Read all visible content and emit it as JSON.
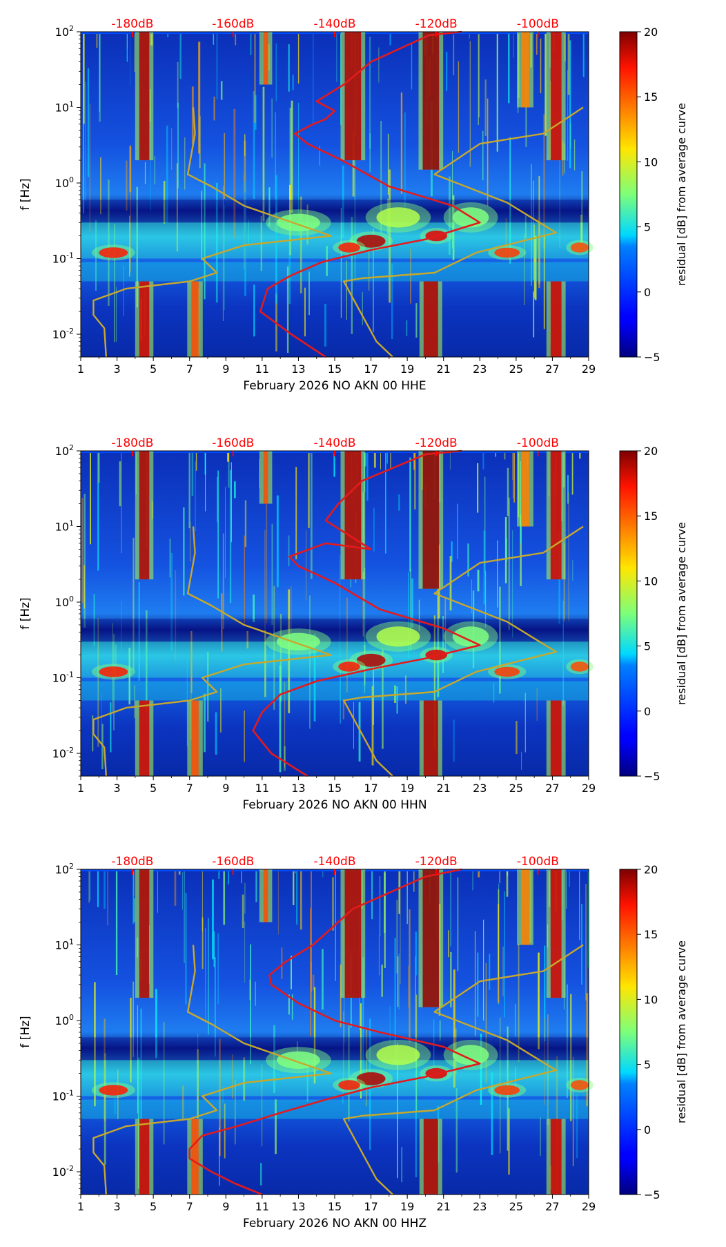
{
  "chart_data": [
    {
      "type": "heatmap",
      "xlabel": "February 2026 NO AKN 00 HHE",
      "ylabel": "f [Hz]",
      "x_ticks": [
        "1",
        "3",
        "5",
        "7",
        "9",
        "11",
        "13",
        "15",
        "17",
        "19",
        "21",
        "23",
        "25",
        "27",
        "29"
      ],
      "x_range": [
        1,
        29
      ],
      "y_ticks": [
        "10^-2",
        "10^-1",
        "10^0",
        "10^1",
        "10^2"
      ],
      "y_range": [
        0.005,
        100
      ],
      "db_labels": [
        "-180dB",
        "-160dB",
        "-140dB",
        "-120dB",
        "-100dB"
      ],
      "colorbar": {
        "label": "residual [dB] from average curve",
        "ticks": [
          "-5",
          "0",
          "5",
          "10",
          "15",
          "20"
        ],
        "range": [
          -5,
          20
        ]
      },
      "series": [
        {
          "name": "mean PSD",
          "color": "#e41a1c",
          "days": [
            14.5,
            12.6,
            10.9,
            11.3,
            12.6,
            14.3,
            17.0,
            20.0,
            23.0,
            21.5,
            18.0,
            15.4,
            13.5,
            12.8,
            13.8,
            14.5,
            15.0,
            14.0,
            15.5,
            17.0,
            20.2,
            22.0
          ],
          "freqs": [
            0.005,
            0.01,
            0.02,
            0.04,
            0.06,
            0.09,
            0.13,
            0.18,
            0.3,
            0.5,
            0.9,
            2.0,
            3.3,
            4.5,
            6.0,
            7.0,
            9.0,
            12.0,
            20.0,
            40.0,
            90.0,
            100.0
          ]
        },
        {
          "name": "noise model low",
          "color": "#c8a82c",
          "days": [
            2.4,
            2.3,
            1.7,
            1.7,
            3.5,
            7.0,
            8.5,
            7.7,
            10.0,
            14.8,
            10.0,
            8.2,
            6.9,
            7.3,
            7.2
          ],
          "freqs": [
            0.005,
            0.012,
            0.018,
            0.028,
            0.04,
            0.05,
            0.065,
            0.1,
            0.15,
            0.2,
            0.5,
            0.9,
            1.3,
            4.5,
            10.0
          ]
        },
        {
          "name": "noise model high",
          "color": "#c8a82c",
          "days": [
            18.2,
            17.3,
            15.5,
            16.5,
            20.5,
            22.8,
            27.2,
            24.5,
            20.5,
            23.0,
            26.5,
            28.7
          ],
          "freqs": [
            0.005,
            0.008,
            0.05,
            0.055,
            0.065,
            0.12,
            0.22,
            0.55,
            1.3,
            3.3,
            4.5,
            10.0
          ]
        }
      ]
    },
    {
      "type": "heatmap",
      "xlabel": "February 2026 NO AKN 00 HHN",
      "ylabel": "f [Hz]",
      "x_ticks": [
        "1",
        "3",
        "5",
        "7",
        "9",
        "11",
        "13",
        "15",
        "17",
        "19",
        "21",
        "23",
        "25",
        "27",
        "29"
      ],
      "x_range": [
        1,
        29
      ],
      "y_ticks": [
        "10^-2",
        "10^-1",
        "10^0",
        "10^1",
        "10^2"
      ],
      "y_range": [
        0.005,
        100
      ],
      "db_labels": [
        "-180dB",
        "-160dB",
        "-140dB",
        "-120dB",
        "-100dB"
      ],
      "colorbar": {
        "label": "residual [dB] from average curve",
        "ticks": [
          "-5",
          "0",
          "5",
          "10",
          "15",
          "20"
        ],
        "range": [
          -5,
          20
        ]
      },
      "series": [
        {
          "name": "mean PSD",
          "color": "#e41a1c",
          "days": [
            13.5,
            11.5,
            10.5,
            11.0,
            12.0,
            14.0,
            17.0,
            20.0,
            23.0,
            21.0,
            17.5,
            15.0,
            13.0,
            12.5,
            13.6,
            14.5,
            17.0,
            14.5,
            15.2,
            16.5,
            20.0,
            22.0
          ],
          "freqs": [
            0.005,
            0.01,
            0.02,
            0.035,
            0.06,
            0.09,
            0.13,
            0.18,
            0.27,
            0.45,
            0.8,
            1.8,
            3.0,
            4.0,
            5.0,
            6.0,
            5.0,
            12.0,
            20.0,
            40.0,
            90.0,
            100.0
          ]
        },
        {
          "name": "noise model low",
          "color": "#c8a82c",
          "days": [
            2.4,
            2.3,
            1.7,
            1.7,
            3.5,
            7.0,
            8.5,
            7.7,
            10.0,
            14.8,
            10.0,
            8.2,
            6.9,
            7.3,
            7.2
          ],
          "freqs": [
            0.005,
            0.012,
            0.018,
            0.028,
            0.04,
            0.05,
            0.065,
            0.1,
            0.15,
            0.2,
            0.5,
            0.9,
            1.3,
            4.5,
            10.0
          ]
        },
        {
          "name": "noise model high",
          "color": "#c8a82c",
          "days": [
            18.2,
            17.3,
            15.5,
            16.5,
            20.5,
            22.8,
            27.2,
            24.5,
            20.5,
            23.0,
            26.5,
            28.7
          ],
          "freqs": [
            0.005,
            0.008,
            0.05,
            0.055,
            0.065,
            0.12,
            0.22,
            0.55,
            1.3,
            3.3,
            4.5,
            10.0
          ]
        }
      ]
    },
    {
      "type": "heatmap",
      "xlabel": "February 2026 NO AKN 00 HHZ",
      "ylabel": "f [Hz]",
      "x_ticks": [
        "1",
        "3",
        "5",
        "7",
        "9",
        "11",
        "13",
        "15",
        "17",
        "19",
        "21",
        "23",
        "25",
        "27",
        "29"
      ],
      "x_range": [
        1,
        29
      ],
      "y_ticks": [
        "10^-2",
        "10^-1",
        "10^0",
        "10^1",
        "10^2"
      ],
      "y_range": [
        0.005,
        100
      ],
      "db_labels": [
        "-180dB",
        "-160dB",
        "-140dB",
        "-120dB",
        "-100dB"
      ],
      "colorbar": {
        "label": "residual [dB] from average curve",
        "ticks": [
          "-5",
          "0",
          "5",
          "10",
          "15",
          "20"
        ],
        "range": [
          -5,
          20
        ]
      },
      "series": [
        {
          "name": "mean PSD",
          "color": "#e41a1c",
          "days": [
            11.0,
            9.5,
            8.2,
            7.0,
            7.0,
            7.7,
            9.6,
            12.0,
            14.5,
            17.0,
            20.0,
            23.0,
            21.0,
            17.5,
            15.0,
            13.0,
            11.5,
            11.4,
            12.3,
            13.8,
            16.0,
            20.0,
            22.0
          ],
          "freqs": [
            0.005,
            0.007,
            0.01,
            0.015,
            0.02,
            0.03,
            0.04,
            0.06,
            0.09,
            0.13,
            0.18,
            0.27,
            0.45,
            0.7,
            1.0,
            1.7,
            3.0,
            4.0,
            6.0,
            10.0,
            30.0,
            80.0,
            100.0
          ]
        },
        {
          "name": "noise model low",
          "color": "#c8a82c",
          "days": [
            2.4,
            2.3,
            1.7,
            1.7,
            3.5,
            7.0,
            8.5,
            7.7,
            10.0,
            14.8,
            10.0,
            8.2,
            6.9,
            7.3,
            7.2
          ],
          "freqs": [
            0.005,
            0.012,
            0.018,
            0.028,
            0.04,
            0.05,
            0.065,
            0.1,
            0.15,
            0.2,
            0.5,
            0.9,
            1.3,
            4.5,
            10.0
          ]
        },
        {
          "name": "noise model high",
          "color": "#c8a82c",
          "days": [
            18.2,
            17.3,
            15.5,
            16.5,
            20.5,
            22.8,
            27.2,
            24.5,
            20.5,
            23.0,
            26.5,
            28.7
          ],
          "freqs": [
            0.005,
            0.008,
            0.05,
            0.055,
            0.065,
            0.12,
            0.22,
            0.55,
            1.3,
            3.3,
            4.5,
            10.0
          ]
        }
      ]
    }
  ]
}
